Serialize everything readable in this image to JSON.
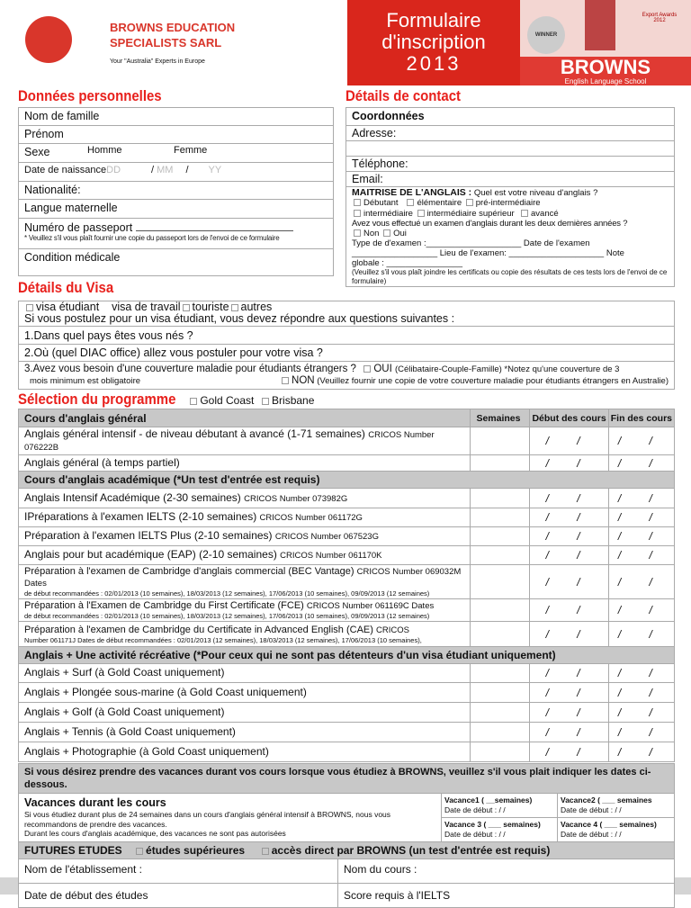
{
  "header": {
    "company_line1": "BROWNS EDUCATION",
    "company_line2": "SPECIALISTS SARL",
    "tagline": "Your \"Australia\" Experts in Europe",
    "banner_title": [
      "Formulaire",
      "d'inscription",
      "2013"
    ],
    "award1": "WINNER",
    "award3": "Export Awards 2012",
    "brand": "BROWNS",
    "brand_sub": "English Language School",
    "accent": "#e8201c",
    "banner_bg": "#d9261c"
  },
  "personal": {
    "title": "Données personnelles",
    "last_name": "Nom de famille",
    "first_name": "Prénom",
    "sex": "Sexe",
    "male": "Homme",
    "female": "Femme",
    "dob": "Date de naissance",
    "dd": "DD",
    "mm": "MM",
    "yy": "YY",
    "nationality": "Nationalité:",
    "mother_tongue": "Langue maternelle",
    "passport": "Numéro de passeport",
    "passport_note": "* Veuillez s'il vous plaît fournir une copie du passeport lors de l'envoi de ce formulaire",
    "medical": "Condition médicale"
  },
  "contact": {
    "title": "Détails de contact",
    "coords": "Coordonnées",
    "address": "Adresse:",
    "phone": "Téléphone:",
    "email": "Email:",
    "english_title": "MAITRISE DE L'ANGLAIS :",
    "english_q": "Quel est votre niveau d'anglais ?",
    "levels1": [
      "Débutant",
      "élémentaire",
      "pré-intermédiaire"
    ],
    "levels2": [
      "intermédiaire",
      "intermédiaire supérieur",
      "avancé"
    ],
    "exam_q": "Avez vous effectué un examen d'anglais durant les deux dernières années ?",
    "no": "Non",
    "yes": "Oui",
    "exam_type": "Type de d'examen :____________________ Date de l'examen",
    "exam_place": "__________________   Lieu de l'examen: ____________________ Note",
    "score": "globale : ________________",
    "note": "(Veuillez s'il vous plaît joindre les certificats ou copie des résultats de ces tests lors de l'envoi de ce formulaire)"
  },
  "visa": {
    "title": "Détails du Visa",
    "types": [
      "visa étudiant",
      "visa de travail",
      "touriste",
      "autres"
    ],
    "intro": "Si vous postulez pour un visa étudiant, vous devez répondre aux questions suivantes :",
    "q1": "Dans quel pays êtes vous nés ?",
    "q2": "Où (quel DIAC office) allez vous postuler pour votre visa ?",
    "q3": "3.Avez vous besoin d'une couverture maladie pour étudiants étrangers ?",
    "q3_yes": "OUI",
    "q3_yes_note": "(Célibataire-Couple-Famille) *Notez qu'une couverture de 3",
    "q3_cont": "mois minimum est obligatoire",
    "q3_no": "NON",
    "q3_no_note": "(Veuillez fournir une copie de votre couverture maladie pour étudiants étrangers en Australie)"
  },
  "program": {
    "title": "Sélection du programme",
    "locations": [
      "Gold Coast",
      "Brisbane"
    ],
    "cols": [
      "Semaines",
      "Début des cours",
      "Fin des cours"
    ],
    "sections": [
      {
        "header": "Cours d'anglais général",
        "rows": [
          {
            "name": "Anglais général intensif - de niveau débutant à avancé (1-71 semaines)",
            "cricos": "CRICOS Number  076222B"
          },
          {
            "name": "Anglais général (à temps partiel)",
            "cricos": ""
          }
        ]
      },
      {
        "header": "Cours d'anglais académique (*Un test d'entrée est requis)",
        "rows": [
          {
            "name": "Anglais Intensif Académique (2-30 semaines)",
            "cricos": "CRICOS Number 073982G"
          },
          {
            "name": "IPréparations à l'examen IELTS (2-10 semaines)",
            "cricos": "CRICOS Number 061172G"
          },
          {
            "name": "Préparation à l'examen IELTS Plus (2-10 semaines)",
            "cricos": "CRICOS Number 067523G"
          },
          {
            "name": "Anglais pour but académique (EAP) (2-10 semaines)",
            "cricos": "CRICOS Number  061170K"
          },
          {
            "name": "Préparation à l'examen de Cambridge d'anglais commercial (BEC Vantage)",
            "cricos": "CRICOS Number  069032M Dates",
            "dates": "de début recommandées : 02/01/2013 (10 semaines), 18/03/2013 (12 semaines), 17/06/2013 (10 semaines), 09/09/2013 (12 semaines)"
          },
          {
            "name": "Préparation à l'Examen de Cambridge du First Certificate (FCE)",
            "cricos": "CRICOS Number 061169C Dates",
            "dates": "de début recommandées : 02/01/2013 (10 semaines), 18/03/2013 (12 semaines), 17/06/2013 (10 semaines), 09/09/2013 (12 semaines)"
          },
          {
            "name": "Préparation à l'examen de Cambridge du Certificate in Advanced English (CAE)",
            "cricos": "CRICOS",
            "dates": "Number 061171J Dates de début recommandées : 02/01/2013 (12 semaines), 18/03/2013 (12 semaines), 17/06/2013 (10 semaines),"
          }
        ]
      },
      {
        "header": "Anglais + Une activité récréative (*Pour ceux qui ne sont pas détenteurs d'un visa étudiant uniquement)",
        "rows": [
          {
            "name": "Anglais + Surf (à Gold Coast uniquement)",
            "cricos": ""
          },
          {
            "name": "Anglais + Plongée sous-marine (à Gold Coast uniquement)",
            "cricos": ""
          },
          {
            "name": "Anglais + Golf (à Gold Coast uniquement)",
            "cricos": ""
          },
          {
            "name": "Anglais + Tennis (à Gold Coast uniquement)",
            "cricos": ""
          },
          {
            "name": "Anglais + Photographie (à Gold Coast uniquement)",
            "cricos": ""
          }
        ]
      }
    ],
    "date_slashes": "/ /"
  },
  "holidays": {
    "banner": "Si vous désirez prendre des vacances durant vos cours lorsque vous étudiez à BROWNS, veuillez s'il vous plait indiquer les dates ci-dessous.",
    "title": "Vacances durant les cours",
    "text1": "Si vous étudiez durant plus de 24 semaines dans un cours d'anglais général intensif à BROWNS, nous vous recommandons de prendre des vacances.",
    "text2": "Durant les cours d'anglais académique, des vacances ne sont pas  autorisées",
    "v1": "Vacance1 ( __semaines)",
    "v2": "Vacance2 ( ___ semaines",
    "v3": "Vacance 3  ( ___ semaines)",
    "v4": "Vacance 4  ( ___ semaines)",
    "start": "Date de début :   /    /"
  },
  "future": {
    "title": "FUTURES ETUDES",
    "opt1": "études supérieures",
    "opt2": "accès direct par BROWNS (un test d'entrée est requis)",
    "institution": "Nom de l'établissement :",
    "course": "Nom du cours :",
    "start": "Date de début des études",
    "ielts": "Score requis à l'IELTS"
  }
}
